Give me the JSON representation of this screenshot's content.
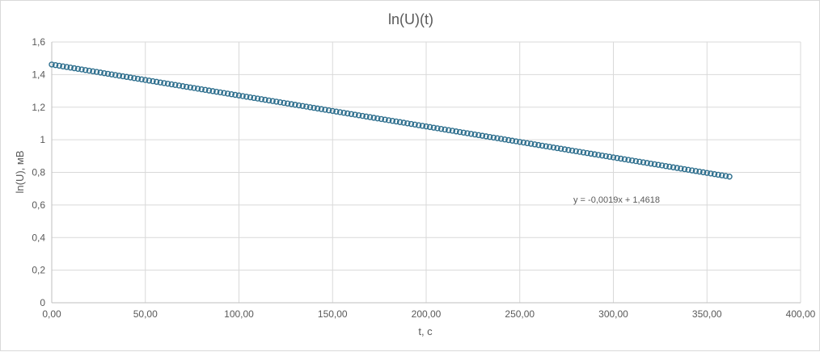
{
  "chart_data": {
    "type": "scatter",
    "title": "ln(U)(t)",
    "xlabel": "t, c",
    "ylabel": "ln(U), мВ",
    "xlim": [
      0,
      400
    ],
    "ylim": [
      0,
      1.6
    ],
    "x_ticks": [
      "0,00",
      "50,00",
      "100,00",
      "150,00",
      "200,00",
      "250,00",
      "300,00",
      "350,00",
      "400,00"
    ],
    "y_ticks": [
      "0",
      "0,2",
      "0,4",
      "0,6",
      "0,8",
      "1",
      "1,2",
      "1,4",
      "1,6"
    ],
    "grid": true,
    "legend": "none",
    "trendline_label": "y = -0,0019x + 1,4618",
    "series": [
      {
        "color": "#2e6f8e",
        "x_start": 0,
        "x_end": 362,
        "x_step": 2,
        "y_start": 1.4618,
        "slope": -0.0019
      }
    ]
  }
}
